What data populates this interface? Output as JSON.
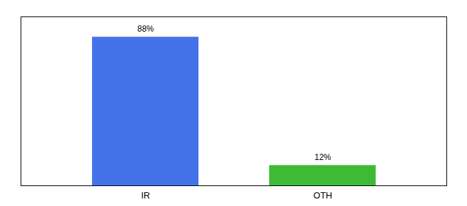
{
  "chart_data": {
    "type": "bar",
    "categories": [
      "IR",
      "OTH"
    ],
    "values": [
      88,
      12
    ],
    "value_labels": [
      "88%",
      "12%"
    ],
    "colors": [
      "#4472e8",
      "#3dbb35"
    ],
    "data_labels": true,
    "ylim": [
      0,
      100
    ],
    "yticks": [],
    "tick_labels": "x",
    "grid": false
  }
}
